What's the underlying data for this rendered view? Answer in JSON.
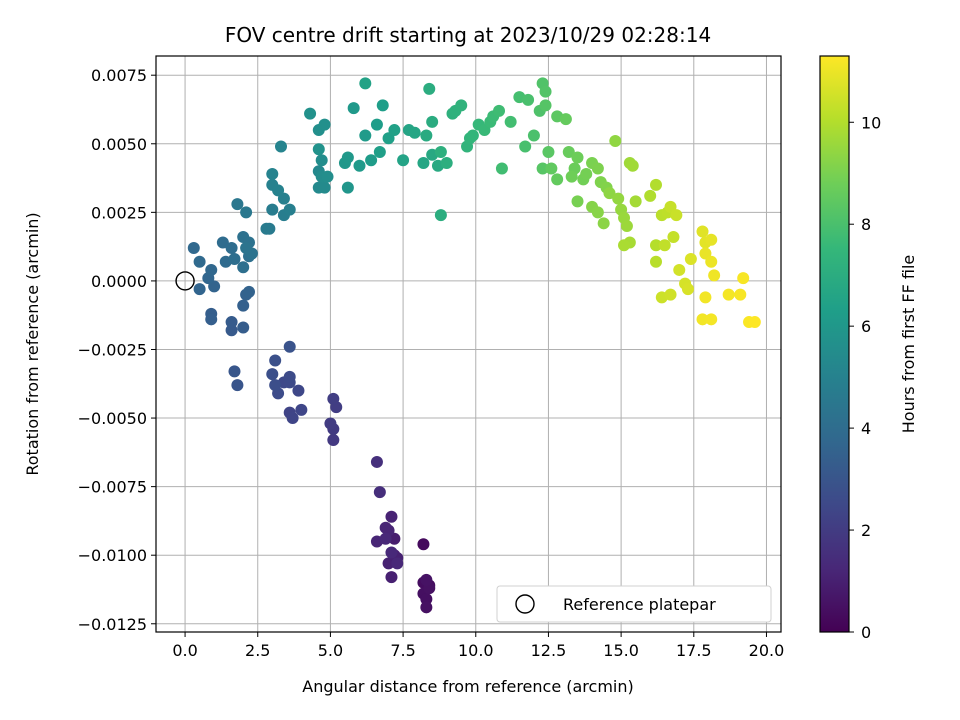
{
  "chart_data": {
    "type": "scatter",
    "title": "FOV centre drift starting at 2023/10/29 02:28:14",
    "xlabel": "Angular distance from reference (arcmin)",
    "ylabel": "Rotation from reference (arcmin)",
    "xlim": [
      -1.0,
      20.5
    ],
    "ylim": [
      -0.0128,
      0.0082
    ],
    "xticks": [
      0.0,
      2.5,
      5.0,
      7.5,
      10.0,
      12.5,
      15.0,
      17.5,
      20.0
    ],
    "xtick_labels": [
      "0.0",
      "2.5",
      "5.0",
      "7.5",
      "10.0",
      "12.5",
      "15.0",
      "17.5",
      "20.0"
    ],
    "yticks": [
      -0.0125,
      -0.01,
      -0.0075,
      -0.005,
      -0.0025,
      0.0,
      0.0025,
      0.005,
      0.0075
    ],
    "ytick_labels": [
      "−0.0125",
      "−0.0100",
      "−0.0075",
      "−0.0050",
      "−0.0025",
      "0.0000",
      "0.0025",
      "0.0050",
      "0.0075"
    ],
    "grid": true,
    "legend": {
      "position": "lower-right",
      "entries": [
        "Reference platepar"
      ]
    },
    "colorbar": {
      "label": "Hours from first FF file",
      "range": [
        0,
        11.3
      ],
      "ticks": [
        0,
        2,
        4,
        6,
        8,
        10
      ],
      "tick_labels": [
        "0",
        "2",
        "4",
        "6",
        "8",
        "10"
      ],
      "colormap": "viridis"
    },
    "reference_point": {
      "x": 0.0,
      "y": 0.0
    },
    "points": [
      {
        "x": 8.2,
        "y": -0.0096,
        "h": 0.3
      },
      {
        "x": 8.2,
        "y": -0.011,
        "h": 0.4
      },
      {
        "x": 8.4,
        "y": -0.0111,
        "h": 0.4
      },
      {
        "x": 8.2,
        "y": -0.0114,
        "h": 0.45
      },
      {
        "x": 8.3,
        "y": -0.0116,
        "h": 0.45
      },
      {
        "x": 8.3,
        "y": -0.0119,
        "h": 0.5
      },
      {
        "x": 8.4,
        "y": -0.0112,
        "h": 0.5
      },
      {
        "x": 8.3,
        "y": -0.0109,
        "h": 0.55
      },
      {
        "x": 7.2,
        "y": -0.0094,
        "h": 0.9
      },
      {
        "x": 7.2,
        "y": -0.01,
        "h": 0.95
      },
      {
        "x": 7.1,
        "y": -0.0108,
        "h": 1.0
      },
      {
        "x": 7.0,
        "y": -0.0103,
        "h": 1.05
      },
      {
        "x": 7.3,
        "y": -0.0101,
        "h": 1.05
      },
      {
        "x": 7.1,
        "y": -0.0086,
        "h": 1.1
      },
      {
        "x": 6.9,
        "y": -0.009,
        "h": 1.15
      },
      {
        "x": 7.0,
        "y": -0.0091,
        "h": 1.15
      },
      {
        "x": 6.6,
        "y": -0.0095,
        "h": 1.2
      },
      {
        "x": 6.9,
        "y": -0.0094,
        "h": 1.25
      },
      {
        "x": 7.3,
        "y": -0.0103,
        "h": 1.25
      },
      {
        "x": 7.1,
        "y": -0.0099,
        "h": 1.3
      },
      {
        "x": 6.7,
        "y": -0.0077,
        "h": 1.5
      },
      {
        "x": 6.6,
        "y": -0.0066,
        "h": 1.55
      },
      {
        "x": 5.1,
        "y": -0.0058,
        "h": 1.9
      },
      {
        "x": 5.1,
        "y": -0.0054,
        "h": 1.95
      },
      {
        "x": 5.0,
        "y": -0.0052,
        "h": 2.0
      },
      {
        "x": 5.2,
        "y": -0.0046,
        "h": 2.05
      },
      {
        "x": 5.1,
        "y": -0.0043,
        "h": 2.1
      },
      {
        "x": 3.6,
        "y": -0.0048,
        "h": 2.3
      },
      {
        "x": 3.7,
        "y": -0.005,
        "h": 2.35
      },
      {
        "x": 4.0,
        "y": -0.0047,
        "h": 2.4
      },
      {
        "x": 3.9,
        "y": -0.004,
        "h": 2.45
      },
      {
        "x": 3.4,
        "y": -0.0037,
        "h": 2.5
      },
      {
        "x": 3.6,
        "y": -0.0037,
        "h": 2.55
      },
      {
        "x": 3.6,
        "y": -0.0035,
        "h": 2.6
      },
      {
        "x": 3.2,
        "y": -0.0041,
        "h": 2.65
      },
      {
        "x": 3.1,
        "y": -0.0038,
        "h": 2.7
      },
      {
        "x": 3.0,
        "y": -0.0034,
        "h": 2.75
      },
      {
        "x": 3.1,
        "y": -0.0029,
        "h": 2.8
      },
      {
        "x": 3.6,
        "y": -0.0024,
        "h": 2.9
      },
      {
        "x": 1.8,
        "y": -0.0038,
        "h": 3.0
      },
      {
        "x": 1.7,
        "y": -0.0033,
        "h": 3.05
      },
      {
        "x": 1.6,
        "y": -0.0018,
        "h": 3.2
      },
      {
        "x": 1.6,
        "y": -0.0015,
        "h": 3.25
      },
      {
        "x": 2.0,
        "y": -0.0017,
        "h": 3.3
      },
      {
        "x": 0.9,
        "y": -0.0012,
        "h": 3.35
      },
      {
        "x": 0.9,
        "y": -0.0014,
        "h": 3.4
      },
      {
        "x": 2.0,
        "y": -0.0009,
        "h": 3.45
      },
      {
        "x": 2.1,
        "y": -0.0005,
        "h": 3.5
      },
      {
        "x": 2.2,
        "y": -0.0004,
        "h": 3.55
      },
      {
        "x": 1.0,
        "y": -0.0002,
        "h": 3.6
      },
      {
        "x": 0.5,
        "y": -0.0003,
        "h": 3.65
      },
      {
        "x": 0.8,
        "y": 0.0001,
        "h": 3.7
      },
      {
        "x": 0.9,
        "y": 0.0004,
        "h": 3.75
      },
      {
        "x": 0.3,
        "y": 0.0012,
        "h": 3.8
      },
      {
        "x": 0.5,
        "y": 0.0007,
        "h": 3.85
      },
      {
        "x": 1.4,
        "y": 0.0007,
        "h": 3.9
      },
      {
        "x": 1.3,
        "y": 0.0014,
        "h": 3.95
      },
      {
        "x": 1.6,
        "y": 0.0012,
        "h": 4.0
      },
      {
        "x": 1.7,
        "y": 0.0008,
        "h": 4.05
      },
      {
        "x": 2.0,
        "y": 0.0005,
        "h": 4.1
      },
      {
        "x": 2.2,
        "y": 0.0009,
        "h": 4.15
      },
      {
        "x": 2.0,
        "y": 0.0016,
        "h": 4.2
      },
      {
        "x": 2.2,
        "y": 0.0014,
        "h": 4.25
      },
      {
        "x": 2.3,
        "y": 0.001,
        "h": 4.3
      },
      {
        "x": 2.1,
        "y": 0.0012,
        "h": 4.35
      },
      {
        "x": 1.8,
        "y": 0.0028,
        "h": 4.5
      },
      {
        "x": 2.1,
        "y": 0.0025,
        "h": 4.55
      },
      {
        "x": 2.9,
        "y": 0.0019,
        "h": 4.65
      },
      {
        "x": 2.8,
        "y": 0.0019,
        "h": 4.7
      },
      {
        "x": 3.0,
        "y": 0.0026,
        "h": 4.75
      },
      {
        "x": 3.4,
        "y": 0.0024,
        "h": 4.8
      },
      {
        "x": 3.6,
        "y": 0.0026,
        "h": 4.85
      },
      {
        "x": 3.4,
        "y": 0.003,
        "h": 4.9
      },
      {
        "x": 3.0,
        "y": 0.0035,
        "h": 4.95
      },
      {
        "x": 3.2,
        "y": 0.0033,
        "h": 5.0
      },
      {
        "x": 3.0,
        "y": 0.0039,
        "h": 5.05
      },
      {
        "x": 3.3,
        "y": 0.0049,
        "h": 5.1
      },
      {
        "x": 4.6,
        "y": 0.004,
        "h": 5.3
      },
      {
        "x": 4.6,
        "y": 0.0034,
        "h": 5.35
      },
      {
        "x": 4.8,
        "y": 0.0034,
        "h": 5.4
      },
      {
        "x": 4.7,
        "y": 0.0038,
        "h": 5.45
      },
      {
        "x": 4.7,
        "y": 0.0044,
        "h": 5.5
      },
      {
        "x": 4.9,
        "y": 0.0038,
        "h": 5.55
      },
      {
        "x": 4.6,
        "y": 0.0055,
        "h": 5.6
      },
      {
        "x": 4.8,
        "y": 0.0057,
        "h": 5.65
      },
      {
        "x": 4.3,
        "y": 0.0061,
        "h": 5.7
      },
      {
        "x": 4.6,
        "y": 0.0048,
        "h": 5.75
      },
      {
        "x": 5.6,
        "y": 0.0034,
        "h": 5.9
      },
      {
        "x": 5.5,
        "y": 0.0043,
        "h": 5.95
      },
      {
        "x": 5.6,
        "y": 0.0045,
        "h": 6.0
      },
      {
        "x": 5.8,
        "y": 0.0063,
        "h": 6.05
      },
      {
        "x": 6.0,
        "y": 0.0042,
        "h": 6.1
      },
      {
        "x": 6.2,
        "y": 0.0053,
        "h": 6.15
      },
      {
        "x": 6.4,
        "y": 0.0044,
        "h": 6.2
      },
      {
        "x": 6.6,
        "y": 0.0057,
        "h": 6.25
      },
      {
        "x": 6.8,
        "y": 0.0064,
        "h": 6.3
      },
      {
        "x": 6.7,
        "y": 0.0047,
        "h": 6.35
      },
      {
        "x": 7.0,
        "y": 0.0052,
        "h": 6.4
      },
      {
        "x": 7.2,
        "y": 0.0055,
        "h": 6.45
      },
      {
        "x": 6.2,
        "y": 0.0072,
        "h": 6.5
      },
      {
        "x": 7.5,
        "y": 0.0044,
        "h": 6.55
      },
      {
        "x": 7.7,
        "y": 0.0055,
        "h": 6.6
      },
      {
        "x": 7.9,
        "y": 0.0054,
        "h": 6.65
      },
      {
        "x": 8.2,
        "y": 0.0043,
        "h": 6.7
      },
      {
        "x": 8.5,
        "y": 0.0046,
        "h": 6.8
      },
      {
        "x": 8.7,
        "y": 0.0042,
        "h": 6.85
      },
      {
        "x": 8.3,
        "y": 0.0053,
        "h": 6.9
      },
      {
        "x": 8.5,
        "y": 0.0058,
        "h": 6.95
      },
      {
        "x": 8.4,
        "y": 0.007,
        "h": 7.0
      },
      {
        "x": 8.8,
        "y": 0.0024,
        "h": 7.05
      },
      {
        "x": 9.0,
        "y": 0.0043,
        "h": 7.1
      },
      {
        "x": 8.8,
        "y": 0.0047,
        "h": 7.15
      },
      {
        "x": 9.2,
        "y": 0.0061,
        "h": 7.2
      },
      {
        "x": 9.3,
        "y": 0.0062,
        "h": 7.25
      },
      {
        "x": 9.5,
        "y": 0.0064,
        "h": 7.3
      },
      {
        "x": 9.7,
        "y": 0.0049,
        "h": 7.35
      },
      {
        "x": 9.8,
        "y": 0.0052,
        "h": 7.4
      },
      {
        "x": 9.9,
        "y": 0.0053,
        "h": 7.45
      },
      {
        "x": 10.1,
        "y": 0.0057,
        "h": 7.55
      },
      {
        "x": 10.3,
        "y": 0.0055,
        "h": 7.6
      },
      {
        "x": 10.5,
        "y": 0.0058,
        "h": 7.65
      },
      {
        "x": 10.6,
        "y": 0.006,
        "h": 7.7
      },
      {
        "x": 10.8,
        "y": 0.0062,
        "h": 7.75
      },
      {
        "x": 10.9,
        "y": 0.0041,
        "h": 7.8
      },
      {
        "x": 11.2,
        "y": 0.0058,
        "h": 7.85
      },
      {
        "x": 11.5,
        "y": 0.0067,
        "h": 7.9
      },
      {
        "x": 11.7,
        "y": 0.0049,
        "h": 7.95
      },
      {
        "x": 11.8,
        "y": 0.0066,
        "h": 8.0
      },
      {
        "x": 12.0,
        "y": 0.0053,
        "h": 8.05
      },
      {
        "x": 12.2,
        "y": 0.0062,
        "h": 8.1
      },
      {
        "x": 12.3,
        "y": 0.0072,
        "h": 8.15
      },
      {
        "x": 12.4,
        "y": 0.0069,
        "h": 8.2
      },
      {
        "x": 12.4,
        "y": 0.0064,
        "h": 8.25
      },
      {
        "x": 12.3,
        "y": 0.0041,
        "h": 8.3
      },
      {
        "x": 12.5,
        "y": 0.0047,
        "h": 8.35
      },
      {
        "x": 12.8,
        "y": 0.006,
        "h": 8.4
      },
      {
        "x": 12.6,
        "y": 0.0041,
        "h": 8.5
      },
      {
        "x": 12.8,
        "y": 0.0037,
        "h": 8.55
      },
      {
        "x": 13.1,
        "y": 0.0059,
        "h": 8.6
      },
      {
        "x": 13.2,
        "y": 0.0047,
        "h": 8.65
      },
      {
        "x": 13.4,
        "y": 0.0041,
        "h": 8.7
      },
      {
        "x": 13.5,
        "y": 0.0045,
        "h": 8.75
      },
      {
        "x": 13.3,
        "y": 0.0038,
        "h": 8.8
      },
      {
        "x": 13.7,
        "y": 0.0037,
        "h": 8.85
      },
      {
        "x": 13.8,
        "y": 0.0039,
        "h": 8.9
      },
      {
        "x": 13.5,
        "y": 0.0029,
        "h": 8.95
      },
      {
        "x": 14.0,
        "y": 0.0043,
        "h": 9.0
      },
      {
        "x": 14.2,
        "y": 0.0041,
        "h": 9.05
      },
      {
        "x": 14.3,
        "y": 0.0036,
        "h": 9.1
      },
      {
        "x": 14.5,
        "y": 0.0034,
        "h": 9.15
      },
      {
        "x": 14.0,
        "y": 0.0027,
        "h": 9.2
      },
      {
        "x": 14.2,
        "y": 0.0025,
        "h": 9.25
      },
      {
        "x": 14.4,
        "y": 0.0021,
        "h": 9.3
      },
      {
        "x": 14.6,
        "y": 0.0032,
        "h": 9.35
      },
      {
        "x": 14.8,
        "y": 0.0051,
        "h": 9.4
      },
      {
        "x": 14.9,
        "y": 0.003,
        "h": 9.45
      },
      {
        "x": 15.0,
        "y": 0.0026,
        "h": 9.5
      },
      {
        "x": 15.1,
        "y": 0.0023,
        "h": 9.55
      },
      {
        "x": 15.2,
        "y": 0.002,
        "h": 9.6
      },
      {
        "x": 15.3,
        "y": 0.0043,
        "h": 9.65
      },
      {
        "x": 15.4,
        "y": 0.0042,
        "h": 9.7
      },
      {
        "x": 15.5,
        "y": 0.0029,
        "h": 9.75
      },
      {
        "x": 15.3,
        "y": 0.0014,
        "h": 9.8
      },
      {
        "x": 15.1,
        "y": 0.0013,
        "h": 9.85
      },
      {
        "x": 16.0,
        "y": 0.0031,
        "h": 9.95
      },
      {
        "x": 16.2,
        "y": 0.0035,
        "h": 10.0
      },
      {
        "x": 16.2,
        "y": 0.0013,
        "h": 10.05
      },
      {
        "x": 16.2,
        "y": 0.0007,
        "h": 10.1
      },
      {
        "x": 16.4,
        "y": 0.0024,
        "h": 10.15
      },
      {
        "x": 16.6,
        "y": 0.0025,
        "h": 10.2
      },
      {
        "x": 16.5,
        "y": 0.0013,
        "h": 10.25
      },
      {
        "x": 16.8,
        "y": 0.0016,
        "h": 10.3
      },
      {
        "x": 16.7,
        "y": 0.0027,
        "h": 10.35
      },
      {
        "x": 16.9,
        "y": 0.0024,
        "h": 10.4
      },
      {
        "x": 16.4,
        "y": -0.0006,
        "h": 10.45
      },
      {
        "x": 16.7,
        "y": -0.0005,
        "h": 10.5
      },
      {
        "x": 17.0,
        "y": 0.0004,
        "h": 10.55
      },
      {
        "x": 17.2,
        "y": -0.0001,
        "h": 10.6
      },
      {
        "x": 17.3,
        "y": -0.0003,
        "h": 10.65
      },
      {
        "x": 17.4,
        "y": 0.0008,
        "h": 10.7
      },
      {
        "x": 17.8,
        "y": 0.0018,
        "h": 10.8
      },
      {
        "x": 17.9,
        "y": 0.0014,
        "h": 10.85
      },
      {
        "x": 18.1,
        "y": 0.0015,
        "h": 10.9
      },
      {
        "x": 17.9,
        "y": 0.001,
        "h": 10.95
      },
      {
        "x": 18.1,
        "y": 0.0007,
        "h": 11.0
      },
      {
        "x": 18.2,
        "y": 0.0002,
        "h": 11.05
      },
      {
        "x": 17.9,
        "y": -0.0006,
        "h": 11.1
      },
      {
        "x": 17.8,
        "y": -0.0014,
        "h": 11.1
      },
      {
        "x": 18.1,
        "y": -0.0014,
        "h": 11.15
      },
      {
        "x": 18.7,
        "y": -0.0005,
        "h": 11.15
      },
      {
        "x": 19.1,
        "y": -0.0005,
        "h": 11.2
      },
      {
        "x": 19.2,
        "y": 0.0001,
        "h": 11.2
      },
      {
        "x": 19.4,
        "y": -0.0015,
        "h": 11.25
      },
      {
        "x": 19.6,
        "y": -0.0015,
        "h": 11.3
      }
    ]
  }
}
